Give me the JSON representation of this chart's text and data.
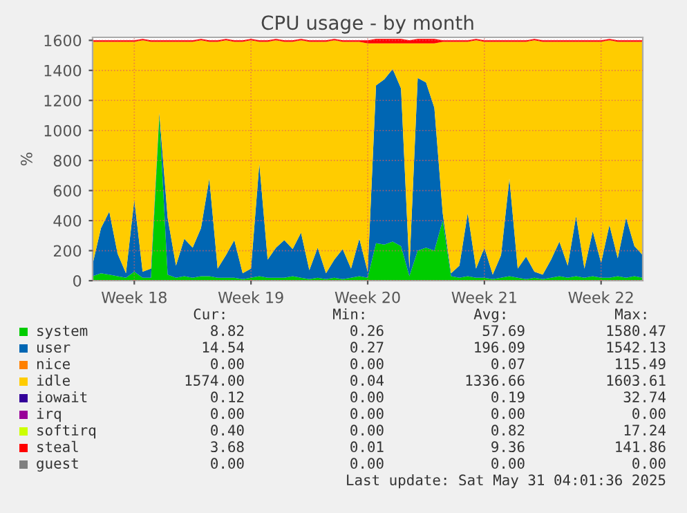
{
  "chart_data": {
    "type": "area",
    "stacked": true,
    "title": "CPU usage - by month",
    "ylabel": "%",
    "categories": [
      null,
      null,
      null,
      null,
      null,
      "Week 18",
      null,
      null,
      null,
      null,
      null,
      null,
      null,
      null,
      null,
      null,
      null,
      null,
      null,
      "Week 19",
      null,
      null,
      null,
      null,
      null,
      null,
      null,
      null,
      null,
      null,
      null,
      null,
      null,
      "Week 20",
      null,
      null,
      null,
      null,
      null,
      null,
      null,
      null,
      null,
      null,
      null,
      null,
      null,
      "Week 21",
      null,
      null,
      null,
      null,
      null,
      null,
      null,
      null,
      null,
      null,
      null,
      null,
      null,
      "Week 22",
      null,
      null,
      null,
      null,
      null
    ],
    "ylim": [
      0,
      1620
    ],
    "yticks": [
      0,
      200,
      400,
      600,
      800,
      1000,
      1200,
      1400,
      1600
    ],
    "grid": true,
    "legend": "bottom",
    "series": [
      {
        "name": "system",
        "color": "#00cc00",
        "values": [
          30,
          50,
          40,
          30,
          20,
          60,
          20,
          20,
          1100,
          40,
          20,
          30,
          20,
          30,
          30,
          20,
          20,
          20,
          10,
          20,
          30,
          20,
          20,
          20,
          30,
          20,
          10,
          20,
          10,
          20,
          10,
          20,
          30,
          20,
          250,
          240,
          260,
          230,
          30,
          200,
          220,
          200,
          400,
          30,
          20,
          30,
          20,
          20,
          10,
          20,
          30,
          20,
          10,
          20,
          10,
          20,
          30,
          20,
          30,
          20,
          30,
          20,
          20,
          30,
          20,
          30,
          20
        ]
      },
      {
        "name": "user",
        "color": "#0066b3",
        "values": [
          80,
          300,
          420,
          150,
          30,
          480,
          40,
          60,
          20,
          380,
          80,
          250,
          200,
          320,
          650,
          60,
          150,
          250,
          40,
          60,
          750,
          120,
          200,
          250,
          180,
          300,
          60,
          200,
          40,
          120,
          200,
          60,
          250,
          40,
          1050,
          1100,
          1150,
          1050,
          50,
          1150,
          1100,
          950,
          50,
          20,
          80,
          420,
          60,
          200,
          30,
          150,
          650,
          60,
          150,
          40,
          30,
          120,
          230,
          80,
          400,
          60,
          300,
          100,
          350,
          120,
          400,
          200,
          150
        ]
      },
      {
        "name": "nice",
        "color": "#ff8000",
        "values": [
          null,
          null,
          null,
          null,
          null,
          null,
          null,
          null,
          null,
          null,
          null,
          null,
          null,
          null,
          null,
          null,
          null,
          null,
          null,
          null,
          null,
          null,
          null,
          null,
          null,
          null,
          null,
          null,
          null,
          null,
          null,
          null,
          null,
          null,
          null,
          null,
          null,
          null,
          null,
          null,
          null,
          null,
          null,
          null,
          null,
          null,
          null,
          null,
          null,
          null,
          null,
          null,
          null,
          null,
          null,
          null,
          null,
          null,
          null,
          null,
          null,
          null,
          null,
          null,
          null,
          null,
          null
        ]
      },
      {
        "name": "idle",
        "color": "#ffcc00",
        "values": [
          1480,
          1240,
          1130,
          1410,
          1540,
          1050,
          1540,
          1510,
          470,
          1170,
          1490,
          1310,
          1370,
          1250,
          910,
          1510,
          1430,
          1320,
          1540,
          1520,
          810,
          1450,
          1380,
          1320,
          1380,
          1280,
          1520,
          1370,
          1540,
          1460,
          1380,
          1510,
          1310,
          1520,
          280,
          240,
          170,
          300,
          1500,
          230,
          260,
          430,
          1140,
          1540,
          1490,
          1140,
          1520,
          1370,
          1550,
          1420,
          910,
          1510,
          1430,
          1540,
          1550,
          1450,
          1330,
          1490,
          1160,
          1510,
          1260,
          1470,
          1230,
          1440,
          1170,
          1360,
          1420
        ]
      },
      {
        "name": "iowait",
        "color": "#330099",
        "values": [
          null,
          null,
          null,
          null,
          null,
          null,
          null,
          null,
          null,
          null,
          null,
          null,
          null,
          null,
          null,
          null,
          null,
          null,
          null,
          null,
          null,
          null,
          null,
          null,
          null,
          null,
          null,
          null,
          null,
          null,
          null,
          null,
          null,
          null,
          null,
          null,
          null,
          null,
          null,
          null,
          null,
          null,
          null,
          null,
          null,
          null,
          null,
          null,
          null,
          null,
          null,
          null,
          null,
          null,
          null,
          null,
          null,
          null,
          null,
          null,
          null,
          null,
          null,
          null,
          null,
          null,
          null
        ]
      },
      {
        "name": "irq",
        "color": "#990099",
        "values": [
          null,
          null,
          null,
          null,
          null,
          null,
          null,
          null,
          null,
          null,
          null,
          null,
          null,
          null,
          null,
          null,
          null,
          null,
          null,
          null,
          null,
          null,
          null,
          null,
          null,
          null,
          null,
          null,
          null,
          null,
          null,
          null,
          null,
          null,
          null,
          null,
          null,
          null,
          null,
          null,
          null,
          null,
          null,
          null,
          null,
          null,
          null,
          null,
          null,
          null,
          null,
          null,
          null,
          null,
          null,
          null,
          null,
          null,
          null,
          null,
          null,
          null,
          null,
          null,
          null,
          null,
          null
        ]
      },
      {
        "name": "softirq",
        "color": "#ccff00",
        "values": [
          null,
          null,
          null,
          null,
          null,
          null,
          null,
          null,
          null,
          null,
          null,
          null,
          null,
          null,
          null,
          null,
          null,
          null,
          null,
          null,
          null,
          null,
          null,
          null,
          null,
          null,
          null,
          null,
          null,
          null,
          null,
          null,
          null,
          null,
          null,
          null,
          null,
          null,
          null,
          null,
          null,
          null,
          null,
          null,
          null,
          null,
          null,
          null,
          null,
          null,
          null,
          null,
          null,
          null,
          null,
          null,
          null,
          null,
          null,
          null,
          null,
          null,
          null,
          null,
          null,
          null,
          null
        ]
      },
      {
        "name": "steal",
        "color": "#ff0000",
        "values": [
          10,
          10,
          10,
          10,
          10,
          10,
          10,
          10,
          10,
          10,
          10,
          10,
          10,
          10,
          10,
          10,
          10,
          10,
          10,
          10,
          10,
          10,
          10,
          10,
          10,
          10,
          10,
          10,
          10,
          10,
          10,
          10,
          10,
          20,
          30,
          30,
          30,
          30,
          20,
          30,
          30,
          30,
          10,
          10,
          10,
          10,
          10,
          10,
          10,
          10,
          10,
          10,
          10,
          10,
          10,
          10,
          10,
          10,
          10,
          10,
          10,
          10,
          10,
          10,
          10,
          10,
          10
        ]
      },
      {
        "name": "guest",
        "color": "#808080",
        "values": [
          null,
          null,
          null,
          null,
          null,
          null,
          null,
          null,
          null,
          null,
          null,
          null,
          null,
          null,
          null,
          null,
          null,
          null,
          null,
          null,
          null,
          null,
          null,
          null,
          null,
          null,
          null,
          null,
          null,
          null,
          null,
          null,
          null,
          null,
          null,
          null,
          null,
          null,
          null,
          null,
          null,
          null,
          null,
          null,
          null,
          null,
          null,
          null,
          null,
          null,
          null,
          null,
          null,
          null,
          null,
          null,
          null,
          null,
          null,
          null,
          null,
          null,
          null,
          null,
          null,
          null,
          null
        ]
      }
    ],
    "annotations": [
      "Cur:",
      "Min:",
      "Avg:",
      "Max:",
      "8.82",
      "0.26",
      "57.69",
      "1580.47",
      "14.54",
      "0.27",
      "196.09",
      "1542.13",
      "0.00",
      "0.00",
      "0.07",
      "115.49",
      "1574.00",
      "0.04",
      "1336.66",
      "1603.61",
      "0.12",
      "0.00",
      "0.19",
      "32.74",
      "0.00",
      "0.00",
      "0.00",
      "0.00",
      "0.40",
      "0.00",
      "0.82",
      "17.24",
      "3.68",
      "0.01",
      "9.36",
      "141.86",
      "0.00",
      "0.00",
      "0.00",
      "0.00",
      "Last update: Sat May 31 04:01:36 2025"
    ]
  }
}
